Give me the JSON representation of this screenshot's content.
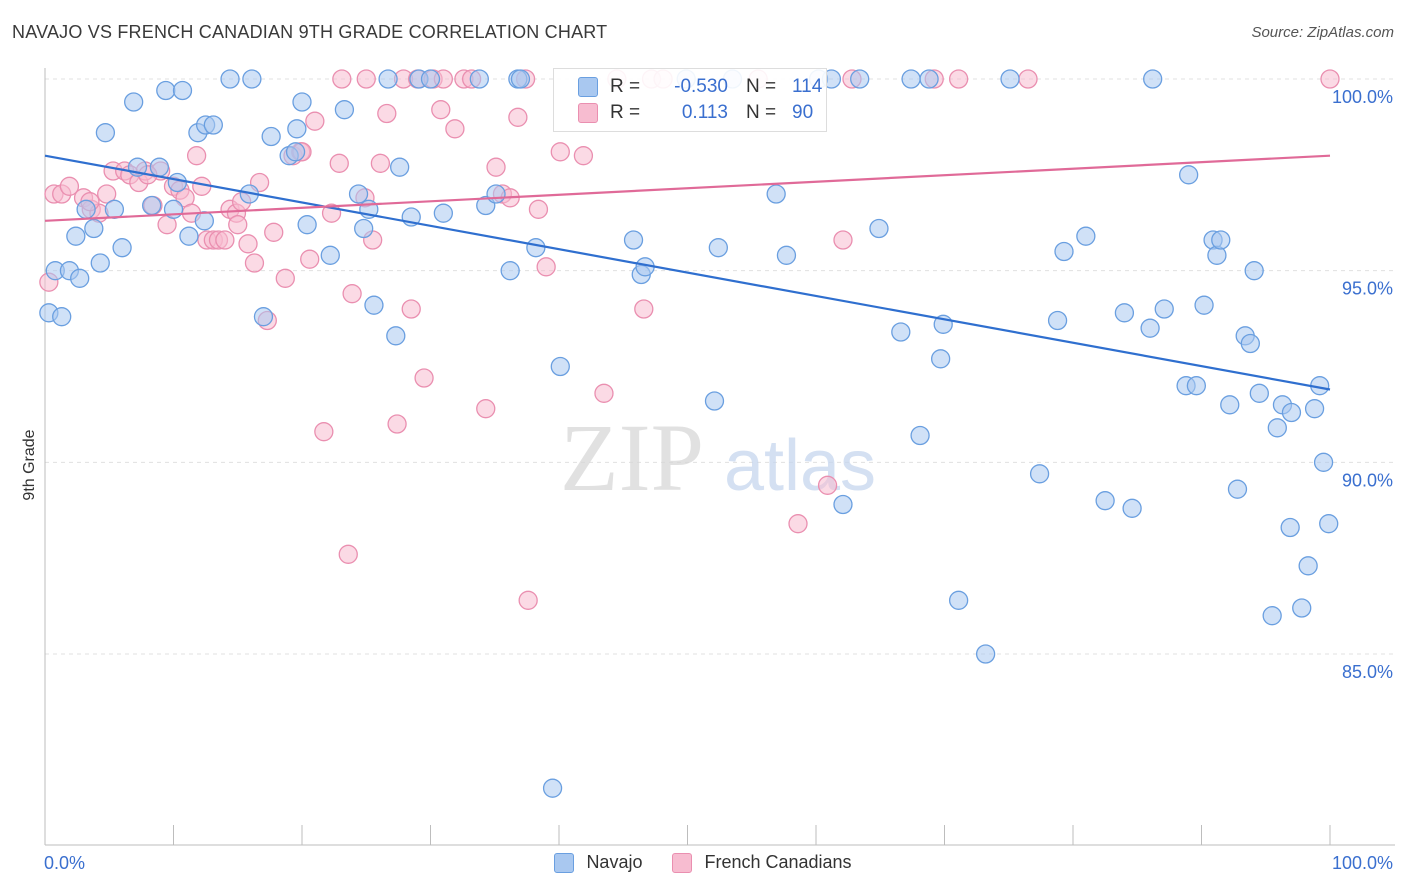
{
  "header": {
    "title": "NAVAJO VS FRENCH CANADIAN 9TH GRADE CORRELATION CHART",
    "source": "Source: ZipAtlas.com"
  },
  "watermark": {
    "zip": "ZIP",
    "atlas": "atlas"
  },
  "legend": {
    "navajo": {
      "r_label": "R =",
      "r_value": "-0.530",
      "n_label": "N =",
      "n_value": "114"
    },
    "french": {
      "r_label": "R =",
      "r_value": "0.113",
      "n_label": "N =",
      "n_value": "90"
    }
  },
  "bottom_legend": {
    "navajo": "Navajo",
    "french": "French Canadians"
  },
  "colors": {
    "navajo_fill": "#a9c8f0",
    "navajo_stroke": "#6a9fe0",
    "navajo_line": "#2f6fcf",
    "french_fill": "#f7bcd0",
    "french_stroke": "#ea8fb0",
    "french_line": "#e06a98",
    "tick_text": "#3a6fcf",
    "grid": "#e0e0e0"
  },
  "chart_data": {
    "type": "scatter",
    "title": "NAVAJO VS FRENCH CANADIAN 9TH GRADE CORRELATION CHART",
    "xlabel": "",
    "ylabel": "9th Grade",
    "xlim": [
      0,
      100
    ],
    "ylim": [
      80.5,
      100.8
    ],
    "x_tick_labels": [
      "0.0%",
      "100.0%"
    ],
    "y_ticks": [
      85,
      90,
      95,
      100
    ],
    "y_tick_labels": [
      "85.0%",
      "90.0%",
      "95.0%",
      "100.0%"
    ],
    "grid": true,
    "legend_position": "top-center",
    "series": [
      {
        "name": "Navajo",
        "trend": {
          "x": [
            0,
            100
          ],
          "y": [
            98.0,
            91.9
          ]
        },
        "points": [
          [
            0.3,
            93.9
          ],
          [
            0.8,
            95.0
          ],
          [
            1.3,
            93.8
          ],
          [
            1.9,
            95.0
          ],
          [
            2.4,
            95.9
          ],
          [
            2.7,
            94.8
          ],
          [
            3.2,
            96.6
          ],
          [
            3.8,
            96.1
          ],
          [
            4.3,
            95.2
          ],
          [
            4.7,
            98.6
          ],
          [
            5.4,
            96.6
          ],
          [
            6.0,
            95.6
          ],
          [
            6.9,
            99.4
          ],
          [
            7.2,
            97.7
          ],
          [
            8.3,
            96.7
          ],
          [
            8.9,
            97.7
          ],
          [
            9.4,
            99.7
          ],
          [
            10.0,
            96.6
          ],
          [
            10.3,
            97.3
          ],
          [
            10.7,
            99.7
          ],
          [
            11.2,
            95.9
          ],
          [
            11.9,
            98.6
          ],
          [
            12.4,
            96.3
          ],
          [
            12.5,
            98.8
          ],
          [
            13.1,
            98.8
          ],
          [
            14.4,
            100.0
          ],
          [
            15.9,
            97.0
          ],
          [
            16.1,
            100.0
          ],
          [
            17.0,
            93.8
          ],
          [
            17.6,
            98.5
          ],
          [
            19.0,
            98.0
          ],
          [
            19.5,
            98.1
          ],
          [
            19.6,
            98.7
          ],
          [
            20.0,
            99.4
          ],
          [
            20.4,
            96.2
          ],
          [
            22.2,
            95.4
          ],
          [
            23.3,
            99.2
          ],
          [
            24.4,
            97.0
          ],
          [
            24.8,
            96.1
          ],
          [
            25.2,
            96.6
          ],
          [
            25.6,
            94.1
          ],
          [
            26.7,
            100.0
          ],
          [
            27.3,
            93.3
          ],
          [
            27.6,
            97.7
          ],
          [
            28.5,
            96.4
          ],
          [
            29.1,
            100.0
          ],
          [
            30.0,
            100.0
          ],
          [
            31.0,
            96.5
          ],
          [
            33.8,
            100.0
          ],
          [
            34.3,
            96.7
          ],
          [
            35.1,
            97.0
          ],
          [
            36.2,
            95.0
          ],
          [
            36.8,
            100.0
          ],
          [
            37.0,
            100.0
          ],
          [
            38.2,
            95.6
          ],
          [
            39.5,
            81.5
          ],
          [
            40.1,
            92.5
          ],
          [
            45.8,
            95.8
          ],
          [
            46.4,
            94.9
          ],
          [
            46.7,
            95.1
          ],
          [
            49.9,
            100.0
          ],
          [
            52.1,
            91.6
          ],
          [
            52.4,
            95.6
          ],
          [
            53.5,
            100.0
          ],
          [
            56.9,
            97.0
          ],
          [
            57.7,
            95.4
          ],
          [
            60.2,
            100.0
          ],
          [
            61.2,
            100.0
          ],
          [
            62.1,
            88.9
          ],
          [
            63.4,
            100.0
          ],
          [
            64.9,
            96.1
          ],
          [
            66.6,
            93.4
          ],
          [
            67.4,
            100.0
          ],
          [
            68.1,
            90.7
          ],
          [
            68.8,
            100.0
          ],
          [
            69.7,
            92.7
          ],
          [
            69.9,
            93.6
          ],
          [
            71.1,
            86.4
          ],
          [
            73.2,
            85.0
          ],
          [
            75.1,
            100.0
          ],
          [
            77.4,
            89.7
          ],
          [
            78.8,
            93.7
          ],
          [
            79.3,
            95.5
          ],
          [
            81.0,
            95.9
          ],
          [
            82.5,
            89.0
          ],
          [
            84.0,
            93.9
          ],
          [
            84.6,
            88.8
          ],
          [
            86.0,
            93.5
          ],
          [
            86.2,
            100.0
          ],
          [
            87.1,
            94.0
          ],
          [
            89.0,
            97.5
          ],
          [
            88.8,
            92.0
          ],
          [
            89.6,
            92.0
          ],
          [
            90.2,
            94.1
          ],
          [
            90.9,
            95.8
          ],
          [
            91.2,
            95.4
          ],
          [
            91.5,
            95.8
          ],
          [
            92.2,
            91.5
          ],
          [
            92.8,
            89.3
          ],
          [
            93.4,
            93.3
          ],
          [
            93.8,
            93.1
          ],
          [
            94.1,
            95.0
          ],
          [
            94.5,
            91.8
          ],
          [
            95.5,
            86.0
          ],
          [
            95.9,
            90.9
          ],
          [
            96.3,
            91.5
          ],
          [
            96.9,
            88.3
          ],
          [
            97.0,
            91.3
          ],
          [
            97.8,
            86.2
          ],
          [
            98.3,
            87.3
          ],
          [
            98.8,
            91.4
          ],
          [
            99.2,
            92.0
          ],
          [
            99.5,
            90.0
          ],
          [
            99.9,
            88.4
          ]
        ]
      },
      {
        "name": "French Canadians",
        "trend": {
          "x": [
            0,
            100
          ],
          "y": [
            96.3,
            98.0
          ]
        },
        "points": [
          [
            0.3,
            94.7
          ],
          [
            0.7,
            97.0
          ],
          [
            1.3,
            97.0
          ],
          [
            1.9,
            97.2
          ],
          [
            3.0,
            96.9
          ],
          [
            3.6,
            96.6
          ],
          [
            4.2,
            96.5
          ],
          [
            4.8,
            97.0
          ],
          [
            5.3,
            97.6
          ],
          [
            6.2,
            97.6
          ],
          [
            6.6,
            97.5
          ],
          [
            7.3,
            97.3
          ],
          [
            7.8,
            97.6
          ],
          [
            8.4,
            96.7
          ],
          [
            9.0,
            97.6
          ],
          [
            9.5,
            96.2
          ],
          [
            10.0,
            97.2
          ],
          [
            10.5,
            97.1
          ],
          [
            10.9,
            96.9
          ],
          [
            11.4,
            96.5
          ],
          [
            11.8,
            98.0
          ],
          [
            12.2,
            97.2
          ],
          [
            12.6,
            95.8
          ],
          [
            13.1,
            95.8
          ],
          [
            13.5,
            95.8
          ],
          [
            14.0,
            95.8
          ],
          [
            14.4,
            96.6
          ],
          [
            14.9,
            96.5
          ],
          [
            15.3,
            96.8
          ],
          [
            15.8,
            95.7
          ],
          [
            16.3,
            95.2
          ],
          [
            16.7,
            97.3
          ],
          [
            17.3,
            93.7
          ],
          [
            17.8,
            96.0
          ],
          [
            18.7,
            94.8
          ],
          [
            19.3,
            98.0
          ],
          [
            19.9,
            98.1
          ],
          [
            20.6,
            95.3
          ],
          [
            21.0,
            98.9
          ],
          [
            21.7,
            90.8
          ],
          [
            22.3,
            96.5
          ],
          [
            22.9,
            97.8
          ],
          [
            23.1,
            100.0
          ],
          [
            23.6,
            87.6
          ],
          [
            23.9,
            94.4
          ],
          [
            24.9,
            96.9
          ],
          [
            25.5,
            95.8
          ],
          [
            26.1,
            97.8
          ],
          [
            26.6,
            99.1
          ],
          [
            27.4,
            91.0
          ],
          [
            27.9,
            100.0
          ],
          [
            28.5,
            94.0
          ],
          [
            29.0,
            100.0
          ],
          [
            29.5,
            92.2
          ],
          [
            30.2,
            100.0
          ],
          [
            30.8,
            99.2
          ],
          [
            31.9,
            98.7
          ],
          [
            32.6,
            100.0
          ],
          [
            33.2,
            100.0
          ],
          [
            34.3,
            91.4
          ],
          [
            35.1,
            97.7
          ],
          [
            35.6,
            97.0
          ],
          [
            36.2,
            96.9
          ],
          [
            36.8,
            99.0
          ],
          [
            37.4,
            100.0
          ],
          [
            37.6,
            86.4
          ],
          [
            38.4,
            96.6
          ],
          [
            39.0,
            95.1
          ],
          [
            40.1,
            98.1
          ],
          [
            41.9,
            98.0
          ],
          [
            43.5,
            91.8
          ],
          [
            44.5,
            100.0
          ],
          [
            46.6,
            94.0
          ],
          [
            47.2,
            100.0
          ],
          [
            48.1,
            100.0
          ],
          [
            55.5,
            100.0
          ],
          [
            58.6,
            88.4
          ],
          [
            60.9,
            89.4
          ],
          [
            62.1,
            95.8
          ],
          [
            62.8,
            100.0
          ],
          [
            69.2,
            100.0
          ],
          [
            71.1,
            100.0
          ],
          [
            76.5,
            100.0
          ],
          [
            100.0,
            100.0
          ],
          [
            25.0,
            100.0
          ],
          [
            31.0,
            100.0
          ],
          [
            20.0,
            98.1
          ],
          [
            15.0,
            96.2
          ],
          [
            8.0,
            97.5
          ],
          [
            3.5,
            96.8
          ]
        ]
      }
    ]
  }
}
